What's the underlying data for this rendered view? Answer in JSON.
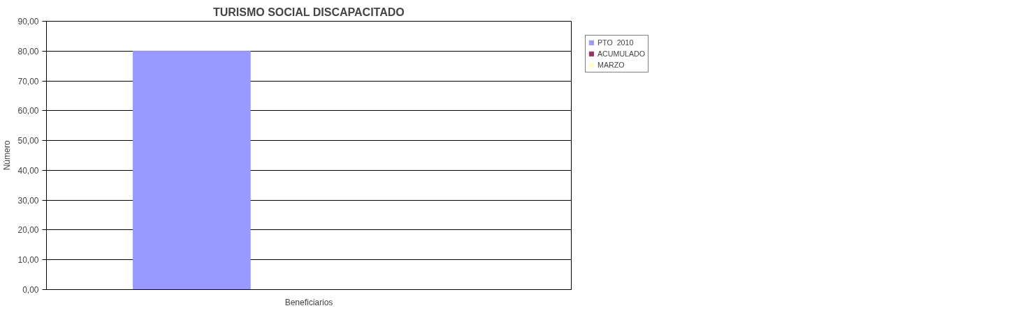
{
  "chart_data": {
    "type": "bar",
    "title": "TURISMO SOCIAL DISCAPACITADO",
    "xlabel": "Beneficiarios",
    "ylabel": "Número",
    "categories": [
      null
    ],
    "series": [
      {
        "name": "PTO  2010",
        "color": "#9999ff",
        "values": [
          80
        ]
      },
      {
        "name": "ACUMULADO",
        "color": "#993366",
        "values": [
          0
        ]
      },
      {
        "name": "MARZO",
        "color": "#ffffcc",
        "values": [
          0
        ]
      }
    ],
    "ylim": [
      0,
      90
    ],
    "yticks": [
      {
        "value": 0,
        "label": "0,00"
      },
      {
        "value": 10,
        "label": "10,00"
      },
      {
        "value": 20,
        "label": "20,00"
      },
      {
        "value": 30,
        "label": "30,00"
      },
      {
        "value": 40,
        "label": "40,00"
      },
      {
        "value": 50,
        "label": "50,00"
      },
      {
        "value": 60,
        "label": "60,00"
      },
      {
        "value": 70,
        "label": "70,00"
      },
      {
        "value": 80,
        "label": "80,00"
      },
      {
        "value": 90,
        "label": "90,00"
      }
    ],
    "grid": "y",
    "legend": "right"
  }
}
